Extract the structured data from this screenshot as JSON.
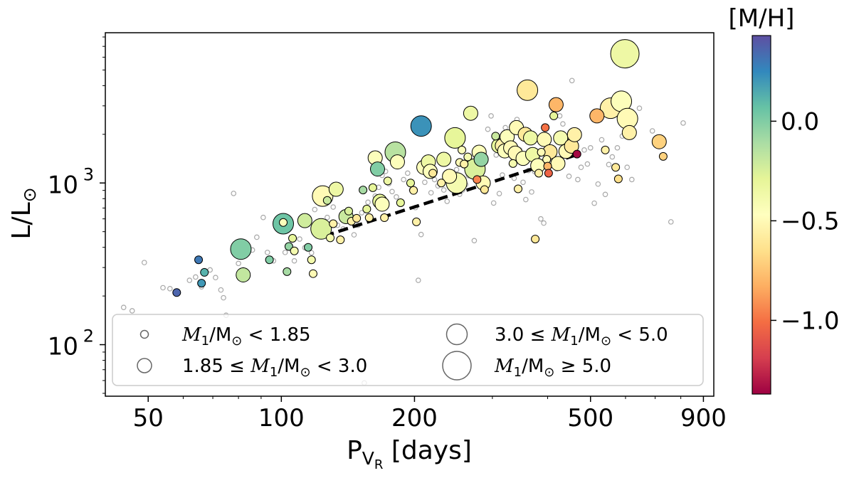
{
  "chart_data": {
    "type": "scatter",
    "title": "",
    "xlabel": "P",
    "xlabel_sub": "V",
    "xlabel_subsub": "R",
    "xlabel_unit": " [days]",
    "ylabel": "L/L",
    "ylabel_sym": "⊙",
    "x_scale": "log",
    "y_scale": "log",
    "xlim": [
      40,
      950
    ],
    "ylim": [
      48,
      8500
    ],
    "x_ticks": [
      50,
      100,
      200,
      500,
      900
    ],
    "y_ticks": [
      {
        "value": 100,
        "base": "10",
        "exp": "2"
      },
      {
        "value": 1000,
        "base": "10",
        "exp": "3"
      }
    ],
    "grid": false,
    "colorbar": {
      "label": "[M/H]",
      "range": [
        -1.37,
        0.43
      ],
      "ticks": [
        "0.0",
        "−0.5",
        "−1.0"
      ],
      "tick_values": [
        0.0,
        -0.5,
        -1.0
      ],
      "colormap": "Spectral",
      "stops": [
        "#9e0142",
        "#d53e4f",
        "#f46d43",
        "#fdae61",
        "#fee08b",
        "#ffffbf",
        "#e6f598",
        "#abdda4",
        "#66c2a5",
        "#3288bd",
        "#5e4fa2"
      ]
    },
    "legend": {
      "placement": "bottom",
      "entries": [
        {
          "label_parts": [
            "",
            "M",
            "1",
            "/M",
            "⊙",
            " < 1.85"
          ],
          "mass_class": 0
        },
        {
          "label_parts": [
            "3.0 ≤ ",
            "M",
            "1",
            "/M",
            "⊙",
            " < 5.0"
          ],
          "mass_class": 2
        },
        {
          "label_parts": [
            "1.85 ≤ ",
            "M",
            "1",
            "/M",
            "⊙",
            " < 3.0"
          ],
          "mass_class": 1
        },
        {
          "label_parts": [
            "",
            "M",
            "1",
            "/M",
            "⊙",
            " ≥ 5.0"
          ],
          "mass_class": 3
        }
      ]
    },
    "fit_line": {
      "style": "dashed",
      "color": "#000000",
      "x": [
        125,
        460
      ],
      "y": [
        470,
        1480
      ]
    },
    "background_points": [
      [
        44,
        170
      ],
      [
        46,
        162
      ],
      [
        49,
        322
      ],
      [
        54,
        225
      ],
      [
        56,
        222
      ],
      [
        58,
        212
      ],
      [
        62,
        250
      ],
      [
        64,
        262
      ],
      [
        66,
        228
      ],
      [
        69,
        290
      ],
      [
        71,
        260
      ],
      [
        73,
        218
      ],
      [
        74,
        195
      ],
      [
        75,
        152
      ],
      [
        78,
        862
      ],
      [
        80,
        318
      ],
      [
        82,
        290
      ],
      [
        86,
        385
      ],
      [
        88,
        462
      ],
      [
        91,
        612
      ],
      [
        93,
        372
      ],
      [
        96,
        330
      ],
      [
        99,
        568
      ],
      [
        102,
        372
      ],
      [
        104,
        520
      ],
      [
        107,
        330
      ],
      [
        110,
        450
      ],
      [
        113,
        398
      ],
      [
        117,
        370
      ],
      [
        119,
        685
      ],
      [
        121,
        560
      ],
      [
        124,
        498
      ],
      [
        127,
        612
      ],
      [
        131,
        710
      ],
      [
        134,
        548
      ],
      [
        138,
        520
      ],
      [
        142,
        612
      ],
      [
        146,
        478
      ],
      [
        149,
        548
      ],
      [
        152,
        655
      ],
      [
        154,
        58
      ],
      [
        157,
        760
      ],
      [
        160,
        600
      ],
      [
        163,
        830
      ],
      [
        166,
        940
      ],
      [
        169,
        1115
      ],
      [
        172,
        1180
      ],
      [
        175,
        990
      ],
      [
        178,
        885
      ],
      [
        182,
        820
      ],
      [
        186,
        752
      ],
      [
        189,
        1050
      ],
      [
        193,
        1150
      ],
      [
        197,
        905
      ],
      [
        201,
        705
      ],
      [
        204,
        250
      ],
      [
        207,
        480
      ],
      [
        211,
        1010
      ],
      [
        215,
        1180
      ],
      [
        218,
        870
      ],
      [
        222,
        1050
      ],
      [
        226,
        960
      ],
      [
        229,
        1380
      ],
      [
        233,
        905
      ],
      [
        237,
        770
      ],
      [
        241,
        1150
      ],
      [
        245,
        1030
      ],
      [
        249,
        1210
      ],
      [
        253,
        852
      ],
      [
        257,
        905
      ],
      [
        261,
        978
      ],
      [
        265,
        1110
      ],
      [
        269,
        1260
      ],
      [
        273,
        440
      ],
      [
        277,
        1340
      ],
      [
        281,
        1075
      ],
      [
        285,
        1495
      ],
      [
        289,
        880
      ],
      [
        293,
        2150
      ],
      [
        298,
        2600
      ],
      [
        302,
        752
      ],
      [
        306,
        1490
      ],
      [
        311,
        860
      ],
      [
        316,
        1120
      ],
      [
        321,
        2200
      ],
      [
        326,
        1540
      ],
      [
        331,
        1310
      ],
      [
        336,
        1070
      ],
      [
        341,
        2470
      ],
      [
        346,
        1600
      ],
      [
        352,
        1010
      ],
      [
        357,
        790
      ],
      [
        362,
        1195
      ],
      [
        368,
        880
      ],
      [
        374,
        1175
      ],
      [
        380,
        1450
      ],
      [
        386,
        600
      ],
      [
        392,
        565
      ],
      [
        398,
        1620
      ],
      [
        405,
        1355
      ],
      [
        412,
        2850
      ],
      [
        419,
        1220
      ],
      [
        426,
        2600
      ],
      [
        433,
        2320
      ],
      [
        440,
        1850
      ],
      [
        447,
        1100
      ],
      [
        454,
        4300
      ],
      [
        461,
        2000
      ],
      [
        468,
        1050
      ],
      [
        476,
        1250
      ],
      [
        484,
        1600
      ],
      [
        492,
        1310
      ],
      [
        500,
        1650
      ],
      [
        510,
        750
      ],
      [
        520,
        985
      ],
      [
        530,
        1850
      ],
      [
        540,
        850
      ],
      [
        550,
        1300
      ],
      [
        560,
        1450
      ],
      [
        575,
        1650
      ],
      [
        590,
        1950
      ],
      [
        605,
        1250
      ],
      [
        620,
        1050
      ],
      [
        645,
        2900
      ],
      [
        690,
        2100
      ],
      [
        760,
        575
      ],
      [
        810,
        2350
      ]
    ],
    "points": [
      {
        "x": 58,
        "y": 210,
        "mh": 0.36,
        "mc": 0
      },
      {
        "x": 65,
        "y": 335,
        "mh": 0.3,
        "mc": 0
      },
      {
        "x": 67,
        "y": 280,
        "mh": 0.12,
        "mc": 0
      },
      {
        "x": 66,
        "y": 240,
        "mh": 0.2,
        "mc": 0
      },
      {
        "x": 81,
        "y": 390,
        "mh": 0.0,
        "mc": 2
      },
      {
        "x": 82,
        "y": 270,
        "mh": -0.18,
        "mc": 1
      },
      {
        "x": 94,
        "y": 335,
        "mh": 0.0,
        "mc": 0
      },
      {
        "x": 101,
        "y": 560,
        "mh": 0.05,
        "mc": 2
      },
      {
        "x": 101,
        "y": 570,
        "mh": -0.45,
        "mc": 0
      },
      {
        "x": 103,
        "y": 283,
        "mh": -0.1,
        "mc": 0
      },
      {
        "x": 104,
        "y": 405,
        "mh": -0.05,
        "mc": 0
      },
      {
        "x": 106,
        "y": 455,
        "mh": -0.3,
        "mc": 0
      },
      {
        "x": 107,
        "y": 380,
        "mh": -0.4,
        "mc": 0
      },
      {
        "x": 113,
        "y": 585,
        "mh": -0.22,
        "mc": 1
      },
      {
        "x": 115,
        "y": 400,
        "mh": 0.0,
        "mc": 0
      },
      {
        "x": 117,
        "y": 335,
        "mh": -0.38,
        "mc": 0
      },
      {
        "x": 118,
        "y": 275,
        "mh": -0.5,
        "mc": 0
      },
      {
        "x": 123,
        "y": 520,
        "mh": -0.25,
        "mc": 2
      },
      {
        "x": 124,
        "y": 830,
        "mh": -0.5,
        "mc": 2
      },
      {
        "x": 127,
        "y": 780,
        "mh": -0.2,
        "mc": 0
      },
      {
        "x": 129,
        "y": 458,
        "mh": -0.4,
        "mc": 0
      },
      {
        "x": 131,
        "y": 560,
        "mh": -0.55,
        "mc": 0
      },
      {
        "x": 133,
        "y": 915,
        "mh": -0.35,
        "mc": 1
      },
      {
        "x": 136,
        "y": 445,
        "mh": -0.55,
        "mc": 0
      },
      {
        "x": 140,
        "y": 620,
        "mh": -0.2,
        "mc": 1
      },
      {
        "x": 142,
        "y": 670,
        "mh": -0.25,
        "mc": 0
      },
      {
        "x": 144,
        "y": 580,
        "mh": -0.55,
        "mc": 0
      },
      {
        "x": 148,
        "y": 605,
        "mh": -0.6,
        "mc": 0
      },
      {
        "x": 153,
        "y": 905,
        "mh": -0.1,
        "mc": 0
      },
      {
        "x": 156,
        "y": 690,
        "mh": -0.3,
        "mc": 0
      },
      {
        "x": 158,
        "y": 610,
        "mh": -0.55,
        "mc": 0
      },
      {
        "x": 161,
        "y": 935,
        "mh": -0.3,
        "mc": 0
      },
      {
        "x": 163,
        "y": 1430,
        "mh": -0.45,
        "mc": 1
      },
      {
        "x": 165,
        "y": 1220,
        "mh": 0.0,
        "mc": 1
      },
      {
        "x": 167,
        "y": 770,
        "mh": -0.3,
        "mc": 1
      },
      {
        "x": 169,
        "y": 740,
        "mh": -0.45,
        "mc": 1
      },
      {
        "x": 171,
        "y": 610,
        "mh": -0.55,
        "mc": 0
      },
      {
        "x": 174,
        "y": 1030,
        "mh": -0.35,
        "mc": 0
      },
      {
        "x": 181,
        "y": 1550,
        "mh": -0.15,
        "mc": 2
      },
      {
        "x": 183,
        "y": 1350,
        "mh": -0.45,
        "mc": 1
      },
      {
        "x": 186,
        "y": 755,
        "mh": -0.3,
        "mc": 0
      },
      {
        "x": 196,
        "y": 1000,
        "mh": -0.3,
        "mc": 0
      },
      {
        "x": 199,
        "y": 900,
        "mh": -0.55,
        "mc": 0
      },
      {
        "x": 202,
        "y": 575,
        "mh": -0.55,
        "mc": 0
      },
      {
        "x": 207,
        "y": 2250,
        "mh": 0.22,
        "mc": 2
      },
      {
        "x": 210,
        "y": 1250,
        "mh": -0.45,
        "mc": 1
      },
      {
        "x": 215,
        "y": 1350,
        "mh": -0.35,
        "mc": 1
      },
      {
        "x": 217,
        "y": 1180,
        "mh": -0.45,
        "mc": 1
      },
      {
        "x": 220,
        "y": 1150,
        "mh": -0.6,
        "mc": 0
      },
      {
        "x": 230,
        "y": 1000,
        "mh": -0.55,
        "mc": 0
      },
      {
        "x": 233,
        "y": 1400,
        "mh": -0.35,
        "mc": 1
      },
      {
        "x": 240,
        "y": 1100,
        "mh": -0.5,
        "mc": 1
      },
      {
        "x": 247,
        "y": 1900,
        "mh": -0.3,
        "mc": 2
      },
      {
        "x": 249,
        "y": 1000,
        "mh": -0.4,
        "mc": 2
      },
      {
        "x": 253,
        "y": 1340,
        "mh": -0.5,
        "mc": 0
      },
      {
        "x": 256,
        "y": 1600,
        "mh": -0.45,
        "mc": 0
      },
      {
        "x": 259,
        "y": 1310,
        "mh": -0.55,
        "mc": 0
      },
      {
        "x": 264,
        "y": 1450,
        "mh": -0.4,
        "mc": 0
      },
      {
        "x": 268,
        "y": 2700,
        "mh": -0.35,
        "mc": 1
      },
      {
        "x": 274,
        "y": 1220,
        "mh": -0.25,
        "mc": 2
      },
      {
        "x": 277,
        "y": 1050,
        "mh": -0.95,
        "mc": 0
      },
      {
        "x": 280,
        "y": 1550,
        "mh": -0.45,
        "mc": 1
      },
      {
        "x": 283,
        "y": 1400,
        "mh": -0.05,
        "mc": 1
      },
      {
        "x": 286,
        "y": 1000,
        "mh": -0.5,
        "mc": 1
      },
      {
        "x": 288,
        "y": 910,
        "mh": -0.6,
        "mc": 0
      },
      {
        "x": 305,
        "y": 1950,
        "mh": -0.2,
        "mc": 0
      },
      {
        "x": 310,
        "y": 1700,
        "mh": -0.3,
        "mc": 1
      },
      {
        "x": 316,
        "y": 1700,
        "mh": -0.55,
        "mc": 1
      },
      {
        "x": 320,
        "y": 1580,
        "mh": -0.45,
        "mc": 1
      },
      {
        "x": 324,
        "y": 1930,
        "mh": -0.45,
        "mc": 1
      },
      {
        "x": 330,
        "y": 1650,
        "mh": -0.5,
        "mc": 1
      },
      {
        "x": 334,
        "y": 1320,
        "mh": -0.4,
        "mc": 0
      },
      {
        "x": 338,
        "y": 1530,
        "mh": -0.5,
        "mc": 1
      },
      {
        "x": 340,
        "y": 2200,
        "mh": -0.5,
        "mc": 1
      },
      {
        "x": 343,
        "y": 920,
        "mh": -0.55,
        "mc": 0
      },
      {
        "x": 352,
        "y": 1420,
        "mh": -0.45,
        "mc": 1
      },
      {
        "x": 356,
        "y": 2000,
        "mh": -0.6,
        "mc": 1
      },
      {
        "x": 360,
        "y": 3750,
        "mh": -0.6,
        "mc": 2
      },
      {
        "x": 366,
        "y": 1900,
        "mh": -0.35,
        "mc": 1
      },
      {
        "x": 370,
        "y": 1500,
        "mh": -0.35,
        "mc": 1
      },
      {
        "x": 375,
        "y": 450,
        "mh": -0.6,
        "mc": 0
      },
      {
        "x": 380,
        "y": 1280,
        "mh": -0.45,
        "mc": 1
      },
      {
        "x": 382,
        "y": 1150,
        "mh": -0.55,
        "mc": 0
      },
      {
        "x": 387,
        "y": 1550,
        "mh": -0.5,
        "mc": 0
      },
      {
        "x": 393,
        "y": 1860,
        "mh": -0.5,
        "mc": 1
      },
      {
        "x": 395,
        "y": 2200,
        "mh": -1.0,
        "mc": 0
      },
      {
        "x": 398,
        "y": 1400,
        "mh": -0.5,
        "mc": 0
      },
      {
        "x": 400,
        "y": 1270,
        "mh": -0.8,
        "mc": 0
      },
      {
        "x": 402,
        "y": 1150,
        "mh": -1.05,
        "mc": 0
      },
      {
        "x": 405,
        "y": 1560,
        "mh": -0.6,
        "mc": 1
      },
      {
        "x": 413,
        "y": 2600,
        "mh": -0.3,
        "mc": 0
      },
      {
        "x": 418,
        "y": 3050,
        "mh": -0.8,
        "mc": 1
      },
      {
        "x": 422,
        "y": 1320,
        "mh": -0.5,
        "mc": 1
      },
      {
        "x": 428,
        "y": 1900,
        "mh": -0.4,
        "mc": 1
      },
      {
        "x": 440,
        "y": 1570,
        "mh": -0.5,
        "mc": 1
      },
      {
        "x": 453,
        "y": 1690,
        "mh": -0.6,
        "mc": 1
      },
      {
        "x": 460,
        "y": 1990,
        "mh": -0.55,
        "mc": 1
      },
      {
        "x": 466,
        "y": 1510,
        "mh": -1.35,
        "mc": 0
      },
      {
        "x": 517,
        "y": 2600,
        "mh": -0.8,
        "mc": 1
      },
      {
        "x": 540,
        "y": 1600,
        "mh": -0.55,
        "mc": 0
      },
      {
        "x": 555,
        "y": 2900,
        "mh": -0.55,
        "mc": 2
      },
      {
        "x": 570,
        "y": 1250,
        "mh": -0.6,
        "mc": 0
      },
      {
        "x": 578,
        "y": 1060,
        "mh": -0.65,
        "mc": 0
      },
      {
        "x": 587,
        "y": 3200,
        "mh": -0.45,
        "mc": 2
      },
      {
        "x": 598,
        "y": 6300,
        "mh": -0.35,
        "mc": 3
      },
      {
        "x": 606,
        "y": 2500,
        "mh": -0.5,
        "mc": 2
      },
      {
        "x": 612,
        "y": 2050,
        "mh": -0.55,
        "mc": 1
      },
      {
        "x": 715,
        "y": 1800,
        "mh": -0.7,
        "mc": 1
      },
      {
        "x": 730,
        "y": 1460,
        "mh": -0.7,
        "mc": 0
      }
    ]
  }
}
